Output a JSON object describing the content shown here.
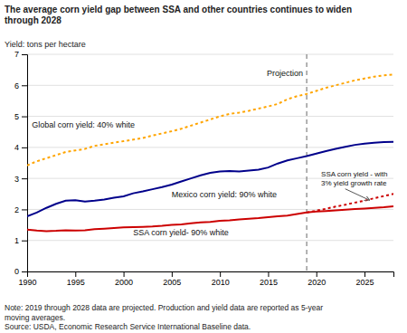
{
  "chart_data": {
    "type": "line",
    "title": "The average corn yield gap between SSA and other countries continues to widen\nthrough 2028",
    "ylabel": "Yield: tons per hectare",
    "note": "Note: 2019 through 2028 data are projected. Production and yield data are reported as 5-year\nmoving averages.\nSource: USDA, Economic Research Service International Baseline data.",
    "xlim": [
      1990,
      2028
    ],
    "ylim": [
      0,
      7
    ],
    "xticks": [
      1990,
      1995,
      2000,
      2005,
      2010,
      2015,
      2020,
      2025
    ],
    "yticks": [
      0,
      1,
      2,
      3,
      4,
      5,
      6,
      7
    ],
    "grid": true,
    "series": [
      {
        "name": "Global corn yield: 40% white",
        "color": "#FFA500",
        "line_style": "dotted",
        "x": [
          1990,
          1991,
          1992,
          1993,
          1994,
          1995,
          1996,
          1997,
          1998,
          1999,
          2000,
          2001,
          2002,
          2003,
          2004,
          2005,
          2006,
          2007,
          2008,
          2009,
          2010,
          2011,
          2012,
          2013,
          2014,
          2015,
          2016,
          2017,
          2018,
          2019,
          2020,
          2021,
          2022,
          2023,
          2024,
          2025,
          2026,
          2027,
          2028
        ],
        "values": [
          3.42,
          3.55,
          3.65,
          3.75,
          3.85,
          3.9,
          3.95,
          4.05,
          4.1,
          4.15,
          4.2,
          4.25,
          4.3,
          4.38,
          4.45,
          4.52,
          4.6,
          4.7,
          4.8,
          4.9,
          5.0,
          5.08,
          5.12,
          5.18,
          5.25,
          5.32,
          5.4,
          5.55,
          5.65,
          5.72,
          5.82,
          5.92,
          6.0,
          6.08,
          6.16,
          6.22,
          6.28,
          6.32,
          6.35
        ]
      },
      {
        "name": "Mexico corn yield: 90% white",
        "color": "#00008B",
        "line_style": "solid",
        "x": [
          1990,
          1991,
          1992,
          1993,
          1994,
          1995,
          1996,
          1997,
          1998,
          1999,
          2000,
          2001,
          2002,
          2003,
          2004,
          2005,
          2006,
          2007,
          2008,
          2009,
          2010,
          2011,
          2012,
          2013,
          2014,
          2015,
          2016,
          2017,
          2018,
          2019,
          2020,
          2021,
          2022,
          2023,
          2024,
          2025,
          2026,
          2027,
          2028
        ],
        "values": [
          1.78,
          1.9,
          2.05,
          2.18,
          2.28,
          2.3,
          2.25,
          2.28,
          2.32,
          2.38,
          2.42,
          2.52,
          2.58,
          2.65,
          2.72,
          2.8,
          2.9,
          3.0,
          3.1,
          3.18,
          3.22,
          3.24,
          3.22,
          3.25,
          3.28,
          3.35,
          3.48,
          3.58,
          3.65,
          3.72,
          3.8,
          3.88,
          3.95,
          4.02,
          4.08,
          4.12,
          4.15,
          4.17,
          4.18
        ]
      },
      {
        "name": "SSA corn yield- 90% white",
        "color": "#CC0000",
        "line_style": "solid",
        "x": [
          1990,
          1991,
          1992,
          1993,
          1994,
          1995,
          1996,
          1997,
          1998,
          1999,
          2000,
          2001,
          2002,
          2003,
          2004,
          2005,
          2006,
          2007,
          2008,
          2009,
          2010,
          2011,
          2012,
          2013,
          2014,
          2015,
          2016,
          2017,
          2018,
          2019
        ],
        "values": [
          1.35,
          1.32,
          1.3,
          1.31,
          1.33,
          1.32,
          1.33,
          1.36,
          1.38,
          1.4,
          1.42,
          1.43,
          1.44,
          1.45,
          1.47,
          1.5,
          1.52,
          1.55,
          1.58,
          1.6,
          1.63,
          1.65,
          1.68,
          1.7,
          1.72,
          1.75,
          1.78,
          1.8,
          1.85,
          1.9
        ]
      },
      {
        "color": "#CC0000",
        "line_style": "solid",
        "x": [
          2019,
          2020,
          2021,
          2022,
          2023,
          2024,
          2025,
          2026,
          2027,
          2028
        ],
        "values": [
          1.9,
          1.93,
          1.95,
          1.97,
          1.99,
          2.01,
          2.03,
          2.05,
          2.07,
          2.1
        ]
      },
      {
        "name": "SSA corn yield - with\n3% yield growth rate",
        "color": "#CC0000",
        "line_style": "dotted",
        "x": [
          2019,
          2020,
          2021,
          2022,
          2023,
          2024,
          2025,
          2026,
          2027,
          2028
        ],
        "values": [
          1.9,
          1.96,
          2.02,
          2.09,
          2.15,
          2.22,
          2.28,
          2.36,
          2.43,
          2.5
        ]
      }
    ],
    "annotations": [
      {
        "type": "vline",
        "x": 2019,
        "text": "Projection",
        "color": "#666666"
      }
    ]
  }
}
